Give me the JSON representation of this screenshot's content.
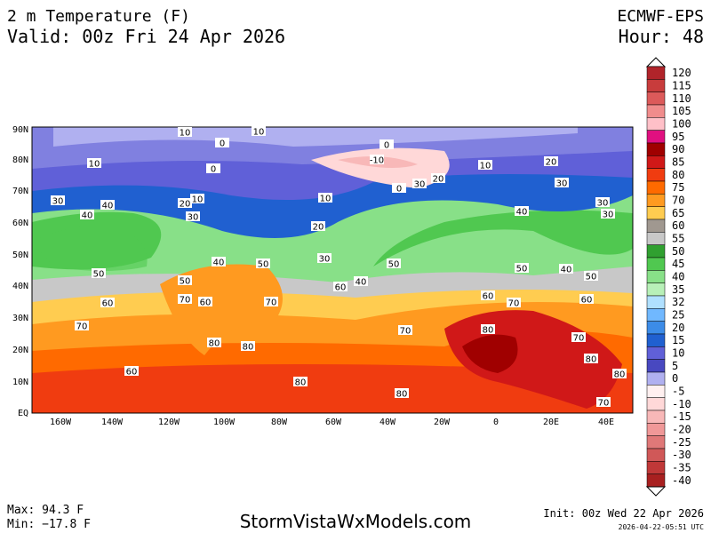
{
  "header": {
    "title": "2 m Temperature (F)",
    "valid": "Valid: 00z Fri 24 Apr 2026",
    "model": "ECMWF-EPS",
    "hour": "Hour: 48"
  },
  "legend": {
    "items": [
      {
        "label": 120,
        "color": "#b0242a"
      },
      {
        "label": 115,
        "color": "#c83c3c"
      },
      {
        "label": 110,
        "color": "#dc5a5a"
      },
      {
        "label": 105,
        "color": "#f08c8c"
      },
      {
        "label": 100,
        "color": "#ffc0c8"
      },
      {
        "label": 95,
        "color": "#e01080"
      },
      {
        "label": 90,
        "color": "#a00000"
      },
      {
        "label": 85,
        "color": "#d01818"
      },
      {
        "label": 80,
        "color": "#f03c10"
      },
      {
        "label": 75,
        "color": "#ff6a00"
      },
      {
        "label": 70,
        "color": "#ff9a20"
      },
      {
        "label": 65,
        "color": "#ffcc50"
      },
      {
        "label": 60,
        "color": "#a09890"
      },
      {
        "label": 55,
        "color": "#c8c8c8"
      },
      {
        "label": 50,
        "color": "#30a030"
      },
      {
        "label": 45,
        "color": "#50c850"
      },
      {
        "label": 40,
        "color": "#88e088"
      },
      {
        "label": 35,
        "color": "#b8f0b8"
      },
      {
        "label": 32,
        "color": "#b0e0ff"
      },
      {
        "label": 25,
        "color": "#70b8ff"
      },
      {
        "label": 20,
        "color": "#3c8ce8"
      },
      {
        "label": 15,
        "color": "#2060d0"
      },
      {
        "label": 10,
        "color": "#6060d8"
      },
      {
        "label": 5,
        "color": "#4848c0"
      },
      {
        "label": 0,
        "color": "#b0b0f0"
      },
      {
        "label": -5,
        "color": "#fff0f0"
      },
      {
        "label": -10,
        "color": "#ffd8d8"
      },
      {
        "label": -15,
        "color": "#f8b8b8"
      },
      {
        "label": -20,
        "color": "#f09898"
      },
      {
        "label": -25,
        "color": "#e07878"
      },
      {
        "label": -30,
        "color": "#d05858"
      },
      {
        "label": -35,
        "color": "#c03838"
      },
      {
        "label": -40,
        "color": "#a82020"
      }
    ]
  },
  "lat_labels": [
    "90N",
    "80N",
    "70N",
    "60N",
    "50N",
    "40N",
    "30N",
    "20N",
    "10N",
    "EQ"
  ],
  "lon_labels": [
    "160W",
    "140W",
    "120W",
    "100W",
    "80W",
    "60W",
    "40W",
    "20W",
    "0",
    "20E",
    "40E"
  ],
  "contour_labels": [
    10,
    10,
    0,
    10,
    0,
    -10,
    0,
    10,
    20,
    30,
    20,
    0,
    10,
    20,
    30,
    30,
    30,
    10,
    40,
    40,
    30,
    20,
    40,
    30,
    30,
    40,
    50,
    50,
    50,
    40,
    60,
    50,
    60,
    70,
    60,
    70,
    40,
    50,
    60,
    70,
    60,
    70,
    70,
    80,
    80,
    80,
    70,
    60,
    80,
    80,
    80,
    80,
    70,
    50
  ],
  "footer": {
    "max": "Max: 94.3 F",
    "min": "Min: −17.8 F",
    "site": "StormVistaWxModels.com",
    "init": "Init: 00z Wed 22 Apr 2026",
    "stamp": "2026-04-22-05:51 UTC"
  }
}
